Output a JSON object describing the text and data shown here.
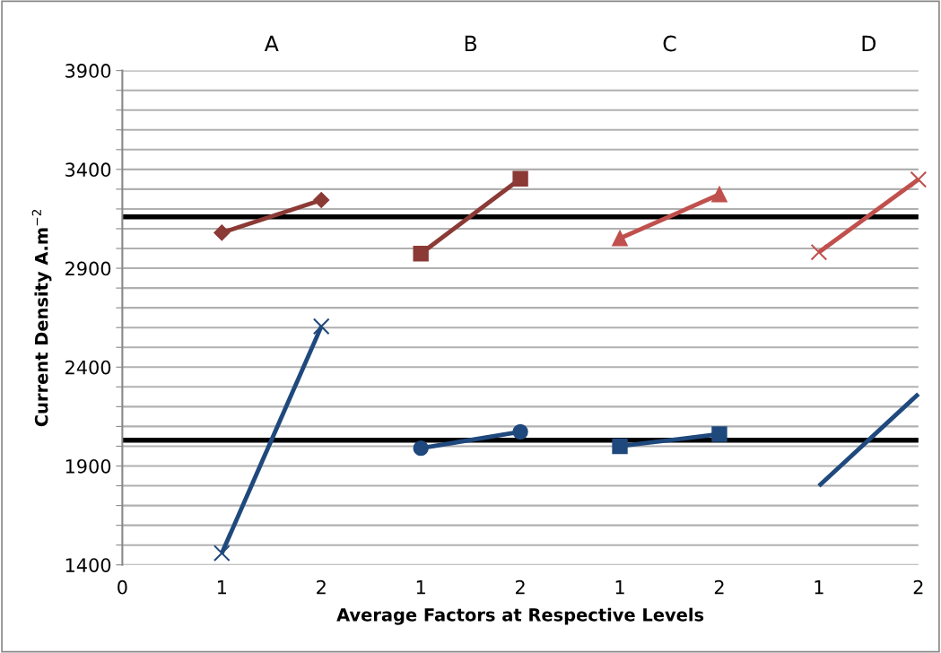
{
  "chart_data": {
    "type": "line",
    "xlabel": "Average Factors at Respective Levels",
    "ylabel": "Current Density A.m$^{−2}$",
    "categories": [
      "0",
      "1",
      "2",
      "1",
      "2",
      "1",
      "2",
      "1",
      "2"
    ],
    "annotations": [
      "A",
      "B",
      "C",
      "D"
    ],
    "ylim": [
      1400,
      3900
    ],
    "yticks": [
      1400,
      {
        "value": 1500,
        "label": null
      },
      {
        "value": 1600,
        "label": null
      },
      {
        "value": 1700,
        "label": null
      },
      {
        "value": 1800,
        "label": null
      },
      1900,
      {
        "value": 2000,
        "label": null
      },
      {
        "value": 2100,
        "label": null
      },
      {
        "value": 2200,
        "label": null
      },
      {
        "value": 2300,
        "label": null
      },
      2400,
      {
        "value": 2500,
        "label": null
      },
      {
        "value": 2600,
        "label": null
      },
      {
        "value": 2700,
        "label": null
      },
      {
        "value": 2800,
        "label": null
      },
      2900,
      {
        "value": 3000,
        "label": null
      },
      {
        "value": 3100,
        "label": null
      },
      {
        "value": 3200,
        "label": null
      },
      {
        "value": 3300,
        "label": null
      },
      3400,
      {
        "value": 3500,
        "label": null
      },
      {
        "value": 3600,
        "label": null
      },
      {
        "value": 3700,
        "label": null
      },
      {
        "value": 3800,
        "label": null
      },
      3900
    ],
    "grid": "y",
    "line_style": "solid",
    "ref_lines": [
      {
        "axis": "y",
        "value": 3160,
        "color": "#000000"
      },
      {
        "axis": "y",
        "value": 2030,
        "color": "#000000"
      }
    ],
    "series": [
      {
        "values": [
          null,
          3080,
          3245,
          null,
          null,
          null,
          null,
          null,
          null
        ],
        "color": "#8b3a36",
        "marker": "diamond"
      },
      {
        "values": [
          null,
          1459,
          2606,
          null,
          null,
          null,
          null,
          null,
          null
        ],
        "color": "#1f497d",
        "marker": "cross"
      },
      {
        "values": [
          null,
          null,
          null,
          2974,
          3353,
          null,
          null,
          null,
          null
        ],
        "color": "#8b3a36",
        "marker": "square"
      },
      {
        "values": [
          null,
          null,
          null,
          1990,
          2073,
          null,
          null,
          null,
          null
        ],
        "color": "#1f497d",
        "marker": "circle"
      },
      {
        "values": [
          null,
          null,
          null,
          null,
          null,
          3051,
          3273,
          null,
          null
        ],
        "color": "#c0504d",
        "marker": "triangle"
      },
      {
        "values": [
          null,
          null,
          null,
          null,
          null,
          2000,
          2061,
          null,
          null
        ],
        "color": "#1f497d",
        "marker": "square"
      },
      {
        "values": [
          null,
          null,
          null,
          null,
          null,
          null,
          null,
          2981,
          3349
        ],
        "color": "#c0504d",
        "marker": "cross"
      },
      {
        "values": [
          null,
          null,
          null,
          null,
          null,
          null,
          null,
          1799,
          2264
        ],
        "color": "#1f497d",
        "marker": "none"
      }
    ]
  }
}
